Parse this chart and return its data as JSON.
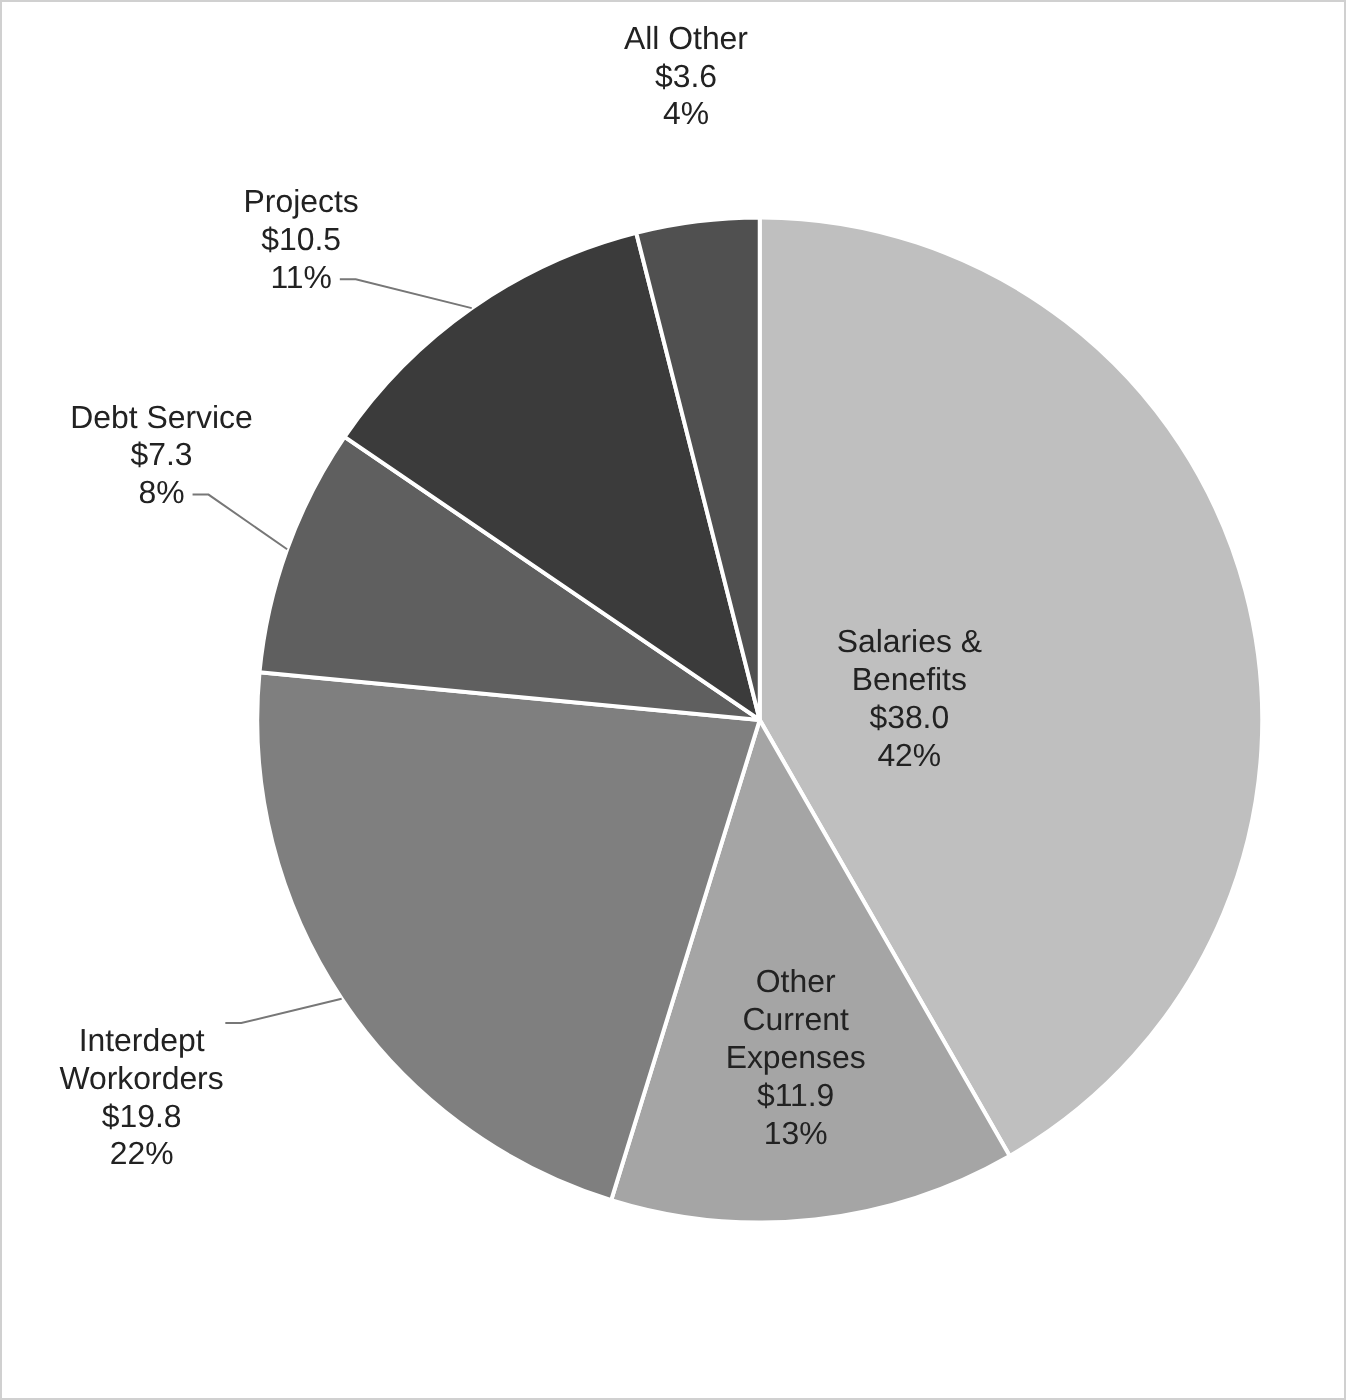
{
  "chart_data": {
    "type": "pie",
    "categories": [
      "Salaries & Benefits",
      "Other Current Expenses",
      "Interdept Workorders",
      "Debt Service",
      "Projects",
      "All Other"
    ],
    "values": [
      38.0,
      11.9,
      19.8,
      7.3,
      10.5,
      3.6
    ],
    "value_labels": [
      "$38.0\n42%",
      "$11.9\n13%",
      "$19.8\n22%",
      "$7.3\n8%",
      "$10.5\n11%",
      "$3.6\n4%"
    ],
    "colors": [
      "#bfbfbf",
      "#a5a5a5",
      "#7f7f7f",
      "#5f5f5f",
      "#3b3b3b",
      "#505050"
    ],
    "legend": false
  }
}
